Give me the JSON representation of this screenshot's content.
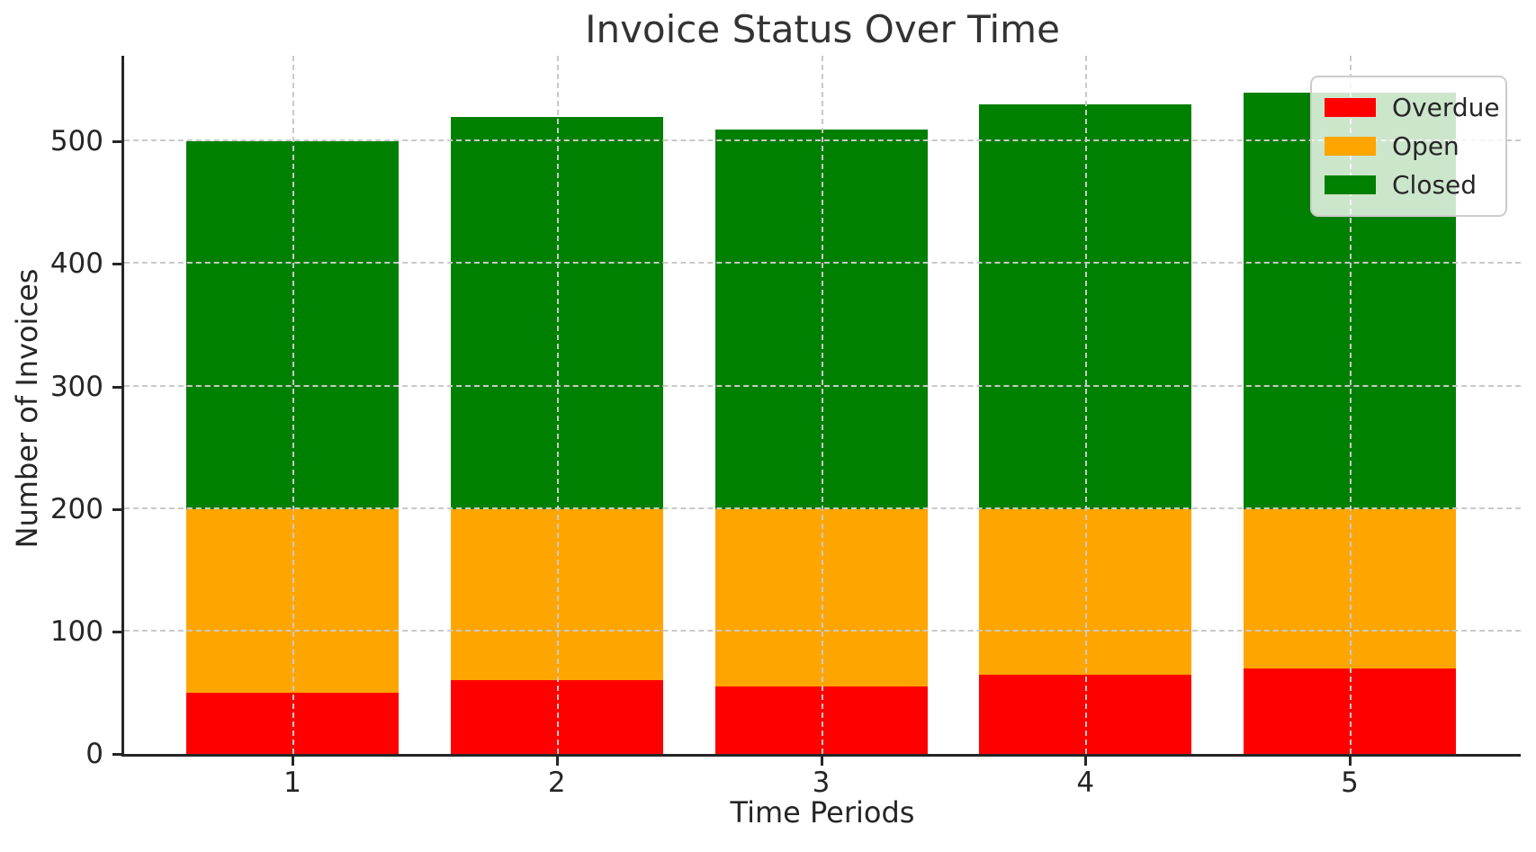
{
  "chart_data": {
    "type": "bar",
    "stacked": true,
    "title": "Invoice Status Over Time",
    "xlabel": "Time Periods",
    "ylabel": "Number of Invoices",
    "categories": [
      "1",
      "2",
      "3",
      "4",
      "5"
    ],
    "series": [
      {
        "name": "Overdue",
        "color": "#ff0000",
        "values": [
          50,
          60,
          55,
          65,
          70
        ]
      },
      {
        "name": "Open",
        "color": "#ffa500",
        "values": [
          150,
          140,
          145,
          135,
          130
        ]
      },
      {
        "name": "Closed",
        "color": "#008000",
        "values": [
          300,
          320,
          310,
          330,
          340
        ]
      }
    ],
    "totals": [
      500,
      520,
      510,
      530,
      540
    ],
    "ylim": [
      0,
      570
    ],
    "yticks": [
      0,
      100,
      200,
      300,
      400,
      500
    ],
    "grid": true,
    "grid_style": "dashed",
    "grid_over_bars": true,
    "legend_position": "upper right",
    "colors": {
      "text": "#262626",
      "title": "#333333",
      "grid": "#c9c9c9",
      "spine": "#262626",
      "legend_border": "#cccccc",
      "legend_background": "rgba(255,255,255,0.8)"
    }
  }
}
